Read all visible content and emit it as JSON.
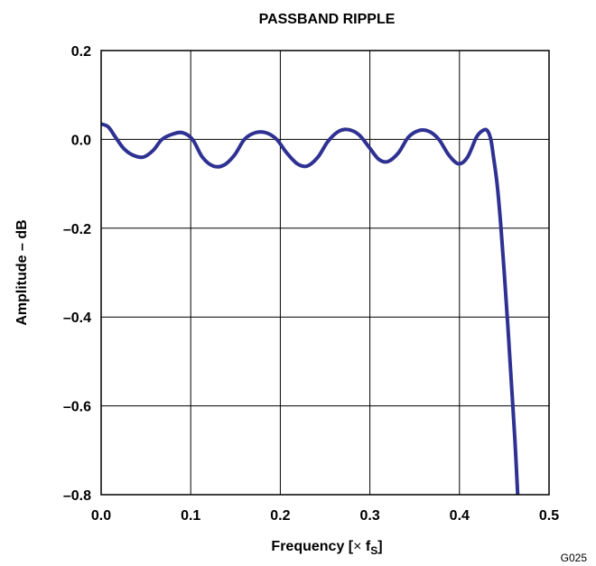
{
  "chart_data": {
    "type": "line",
    "title": "PASSBAND RIPPLE",
    "xlabel_main": "Frequency [",
    "xlabel_times": "×",
    "xlabel_f": " f",
    "xlabel_sub": "S",
    "xlabel_end": "]",
    "ylabel": "Amplitude – dB",
    "xlim": [
      0.0,
      0.5
    ],
    "ylim": [
      -0.8,
      0.2
    ],
    "grid": true,
    "x_ticks": [
      {
        "value": 0.0,
        "label": "0.0"
      },
      {
        "value": 0.1,
        "label": "0.1"
      },
      {
        "value": 0.2,
        "label": "0.2"
      },
      {
        "value": 0.3,
        "label": "0.3"
      },
      {
        "value": 0.4,
        "label": "0.4"
      },
      {
        "value": 0.5,
        "label": "0.5"
      }
    ],
    "y_ticks": [
      {
        "value": 0.2,
        "label": "0.2"
      },
      {
        "value": 0.0,
        "label": "0.0"
      },
      {
        "value": -0.2,
        "label": "–0.2"
      },
      {
        "value": -0.4,
        "label": "–0.4"
      },
      {
        "value": -0.6,
        "label": "–0.6"
      },
      {
        "value": -0.8,
        "label": "–0.8"
      }
    ],
    "line_color": "#2e3192",
    "series": [
      {
        "x": [
          0.0,
          0.008,
          0.016,
          0.025,
          0.035,
          0.047,
          0.058,
          0.068,
          0.08,
          0.091,
          0.102,
          0.113,
          0.125,
          0.137,
          0.149,
          0.16,
          0.172,
          0.184,
          0.196,
          0.207,
          0.219,
          0.23,
          0.242,
          0.253,
          0.265,
          0.276,
          0.288,
          0.3,
          0.31,
          0.32,
          0.332,
          0.343,
          0.355,
          0.366,
          0.377,
          0.388,
          0.399,
          0.409,
          0.419,
          0.426,
          0.431,
          0.435,
          0.438,
          0.442,
          0.446,
          0.45,
          0.454,
          0.458,
          0.462,
          0.465
        ],
        "y": [
          0.035,
          0.028,
          0.005,
          -0.02,
          -0.035,
          -0.04,
          -0.025,
          0.0,
          0.012,
          0.015,
          0.0,
          -0.04,
          -0.06,
          -0.058,
          -0.035,
          0.0,
          0.015,
          0.015,
          0.0,
          -0.03,
          -0.055,
          -0.06,
          -0.04,
          -0.005,
          0.018,
          0.022,
          0.01,
          -0.02,
          -0.045,
          -0.05,
          -0.03,
          0.005,
          0.02,
          0.018,
          0.0,
          -0.035,
          -0.055,
          -0.04,
          0.005,
          0.02,
          0.02,
          0.0,
          -0.04,
          -0.1,
          -0.19,
          -0.3,
          -0.42,
          -0.55,
          -0.68,
          -0.8
        ]
      }
    ]
  },
  "figure_code": "G025"
}
